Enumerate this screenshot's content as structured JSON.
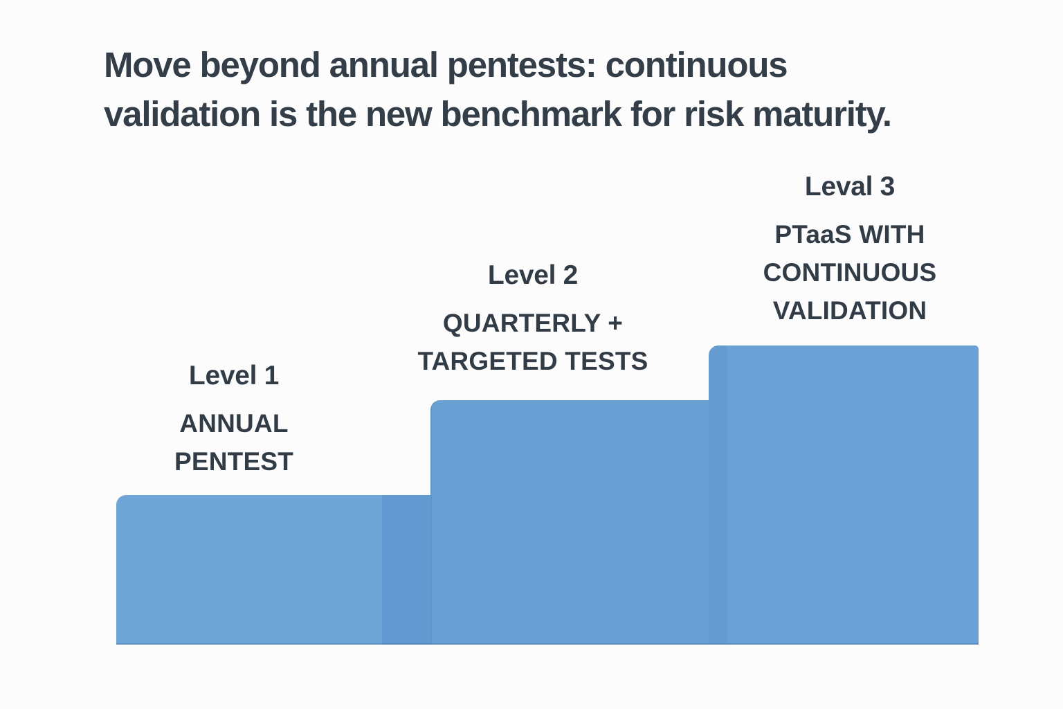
{
  "title": {
    "full": "Move beyond annual pentests: continuous validation is the new benchmark for risk maturity.",
    "lines": [
      "Move beyond annual pentests: continuous",
      "validation is the new benchmark for risk maturity."
    ]
  },
  "colors": {
    "background": "#fcfcfd",
    "bar_blue": "#69a0d4",
    "bar_blue_light": "#6fa5d7",
    "bar_overlap_shade": "#6199d0",
    "text_dark": "#333e48"
  },
  "chart_data": {
    "type": "bar",
    "title": "Move beyond annual pentests: continuous validation is the new benchmark for risk maturity.",
    "categories": [
      "Level 1",
      "Level 2",
      "Leval 3"
    ],
    "relative_heights": [
      1.0,
      1.63,
      2.0
    ],
    "steps": [
      {
        "level_label": "Level 1",
        "name": "ANNUAL PENTEST",
        "name_lines": [
          "ANNUAL",
          "PENTEST"
        ]
      },
      {
        "level_label": "Level 2",
        "name": "QUARTERLY + TARGETED TESTS",
        "name_lines": [
          "QUARTERLY +",
          "TARGETED TESTS"
        ]
      },
      {
        "level_label": "Leval 3",
        "name": "PTaaS WITH CONTINUOUS VALIDATION",
        "name_lines": [
          "PTaaS WITH",
          "CONTINUOUS",
          "VALIDATION"
        ]
      }
    ],
    "xlabel": "",
    "ylabel": "",
    "legend": false,
    "grid": false,
    "axes": "none"
  }
}
